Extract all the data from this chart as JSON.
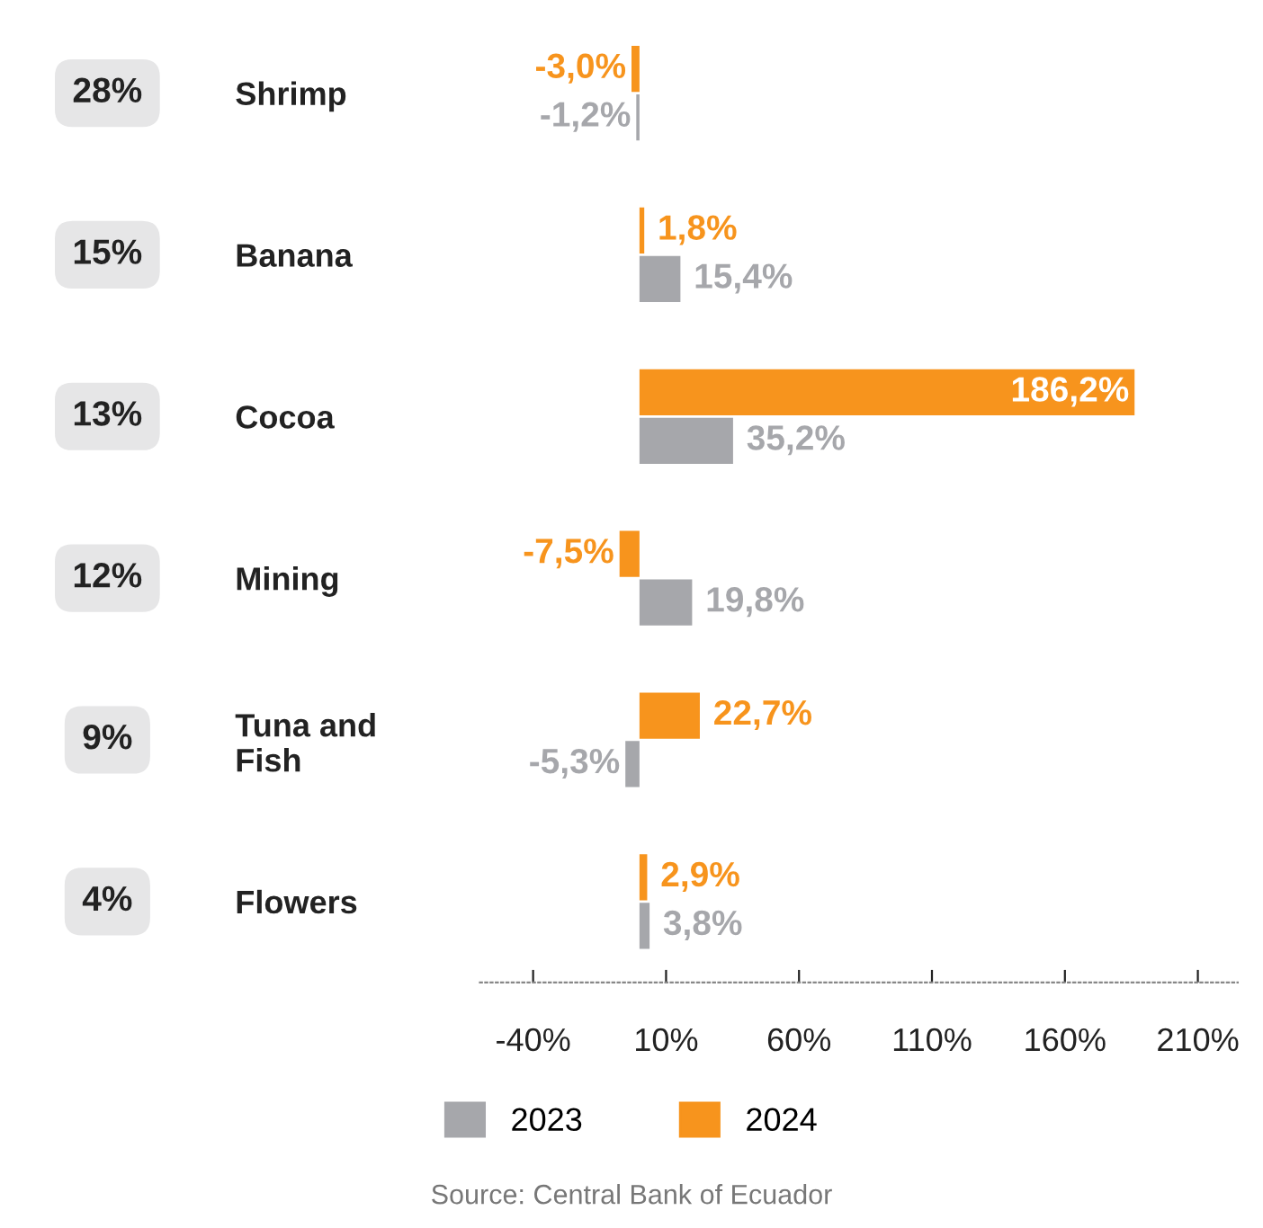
{
  "chart_data": {
    "type": "bar",
    "orientation": "horizontal",
    "categories": [
      "Shrimp",
      "Banana",
      "Cocoa",
      "Mining",
      "Tuna and\nFish",
      "Flowers"
    ],
    "series": [
      {
        "name": "2023",
        "color": "#a6a7ab",
        "values": [
          -1.2,
          15.4,
          35.2,
          19.8,
          -5.3,
          3.8
        ],
        "value_labels": [
          "-1,2%",
          "15,4%",
          "35,2%",
          "19,8%",
          "-5,3%",
          "3,8%"
        ]
      },
      {
        "name": "2024",
        "color": "#f7941d",
        "values": [
          -3.0,
          1.8,
          186.2,
          -7.5,
          22.7,
          2.9
        ],
        "value_labels": [
          "-3,0%",
          "1,8%",
          "186,2%",
          "-7,5%",
          "22,7%",
          "2,9%"
        ]
      }
    ],
    "xlim": [
      -60,
      225
    ],
    "xticks": [
      {
        "value": -40,
        "label": "-40%"
      },
      {
        "value": 10,
        "label": "10%"
      },
      {
        "value": 60,
        "label": "60%"
      },
      {
        "value": 110,
        "label": "110%"
      },
      {
        "value": 160,
        "label": "160%"
      },
      {
        "value": 210,
        "label": "210%"
      }
    ],
    "legend": "bottom",
    "annotations": [
      "28%",
      "15%",
      "13%",
      "12%",
      "9%",
      "4%",
      "Source: Central Bank of Ecuador"
    ]
  }
}
